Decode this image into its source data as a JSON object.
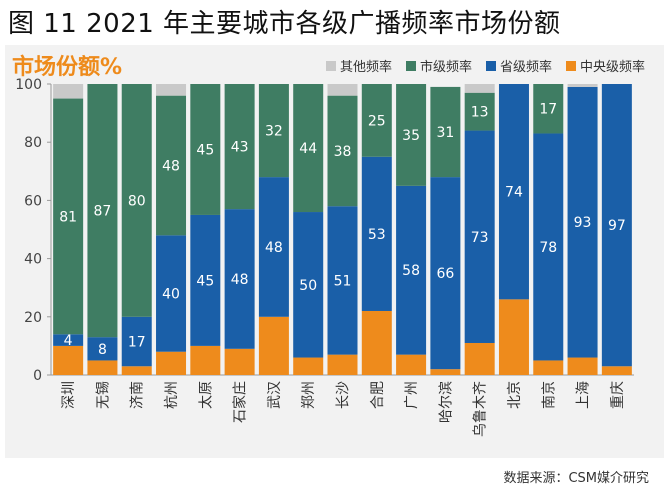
{
  "figure_title": "图 11 2021 年主要城市各级广播频率市场份额",
  "source": "数据来源：CSM媒介研究",
  "chart_data": {
    "type": "bar",
    "stacked": true,
    "title": "市场份额%",
    "xlabel": "",
    "ylabel": "",
    "ylim": [
      0,
      100
    ],
    "yticks": [
      "0",
      "20",
      "40",
      "60",
      "80",
      "100"
    ],
    "grid": false,
    "legend_position": "top-right",
    "categories": [
      "深圳",
      "无锡",
      "济南",
      "杭州",
      "太原",
      "石家庄",
      "武汉",
      "郑州",
      "长沙",
      "合肥",
      "广州",
      "哈尔滨",
      "乌鲁木齐",
      "北京",
      "南京",
      "上海",
      "重庆"
    ],
    "legend": [
      {
        "name": "其他频率",
        "color": "#c9c9c9"
      },
      {
        "name": "市级频率",
        "color": "#3f7d63"
      },
      {
        "name": "省级频率",
        "color": "#1a5fa8"
      },
      {
        "name": "中央级频率",
        "color": "#ee8b1c"
      }
    ],
    "series": [
      {
        "name": "中央级频率",
        "color": "#ee8b1c",
        "labels": [
          "",
          "",
          "",
          "",
          "",
          "",
          "",
          "",
          "",
          "",
          "",
          "",
          "",
          "",
          "",
          "",
          ""
        ],
        "values": [
          10,
          5,
          3,
          8,
          10,
          9,
          20,
          6,
          7,
          22,
          7,
          2,
          11,
          26,
          5,
          6,
          3
        ]
      },
      {
        "name": "省级频率",
        "color": "#1a5fa8",
        "labels": [
          "4",
          "8",
          "17",
          "40",
          "45",
          "48",
          "48",
          "50",
          "51",
          "53",
          "58",
          "66",
          "73",
          "74",
          "78",
          "93",
          "97"
        ],
        "values": [
          4,
          8,
          17,
          40,
          45,
          48,
          48,
          50,
          51,
          53,
          58,
          66,
          73,
          74,
          78,
          93,
          97
        ]
      },
      {
        "name": "市级频率",
        "color": "#3f7d63",
        "labels": [
          "81",
          "87",
          "80",
          "48",
          "45",
          "43",
          "32",
          "44",
          "38",
          "25",
          "35",
          "31",
          "13",
          "",
          "17",
          "",
          ""
        ],
        "values": [
          81,
          87,
          80,
          48,
          45,
          43,
          32,
          44,
          38,
          25,
          35,
          31,
          13,
          0,
          17,
          0,
          0
        ]
      },
      {
        "name": "其他频率",
        "color": "#c9c9c9",
        "labels": [
          "",
          "",
          "",
          "",
          "",
          "",
          "",
          "",
          "",
          "",
          "",
          "",
          "",
          "",
          "",
          "",
          ""
        ],
        "values": [
          5,
          0,
          0,
          4,
          0,
          0,
          0,
          0,
          4,
          0,
          0,
          0,
          3,
          0,
          0,
          1,
          0
        ]
      }
    ]
  }
}
